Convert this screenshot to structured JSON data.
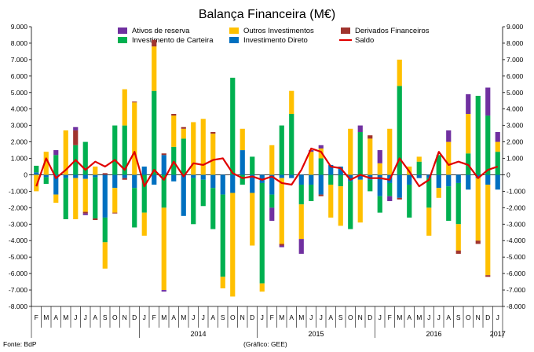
{
  "chart_data": {
    "type": "bar",
    "title": "Balança Financeira (M€)",
    "source": "Fonte: BdP",
    "credit": "(Gráfico: GEE)",
    "ylim": [
      -8000,
      9000
    ],
    "y_ticks": [
      "9.000",
      "8.000",
      "7.000",
      "6.000",
      "5.000",
      "4.000",
      "3.000",
      "2.000",
      "1.000",
      "0",
      "-1.000",
      "-2.000",
      "-3.000",
      "-4.000",
      "-5.000",
      "-6.000",
      "-7.000",
      "-8.000"
    ],
    "y_tick_values": [
      9000,
      8000,
      7000,
      6000,
      5000,
      4000,
      3000,
      2000,
      1000,
      0,
      -1000,
      -2000,
      -3000,
      -4000,
      -5000,
      -6000,
      -7000,
      -8000
    ],
    "month_labels": [
      "F",
      "M",
      "A",
      "M",
      "J",
      "J",
      "A",
      "S",
      "O",
      "N",
      "D",
      "J",
      "F",
      "M",
      "A",
      "M",
      "J",
      "J",
      "A",
      "S",
      "O",
      "N",
      "D",
      "J",
      "F",
      "M",
      "A",
      "M",
      "J",
      "J",
      "A",
      "S",
      "O",
      "N",
      "D",
      "J",
      "F",
      "M",
      "A",
      "M",
      "J",
      "J",
      "A",
      "S",
      "O",
      "N",
      "D",
      "J"
    ],
    "year_labels": [
      {
        "label": "2014",
        "start": 11,
        "end": 22
      },
      {
        "label": "2015",
        "start": 23,
        "end": 34
      },
      {
        "label": "2016",
        "start": 35,
        "end": 46
      },
      {
        "label": "2017",
        "start": 47,
        "end": 47
      }
    ],
    "year_separators_before": [
      11,
      23,
      35,
      47
    ],
    "legend": [
      {
        "name": "Ativos de reserva",
        "color": "#7030A0",
        "kind": "box"
      },
      {
        "name": "Outros Investimentos",
        "color": "#FFC000",
        "kind": "box"
      },
      {
        "name": "Derivados Financeiros",
        "color": "#A0342E",
        "kind": "box"
      },
      {
        "name": "Investimento de Carteira",
        "color": "#00B050",
        "kind": "box"
      },
      {
        "name": "Investimento Direto",
        "color": "#0070C0",
        "kind": "box"
      },
      {
        "name": "Saldo",
        "color": "#E00000",
        "kind": "line"
      }
    ],
    "series": [
      {
        "name": "Investimento Direto",
        "color": "#0070C0",
        "values": [
          150,
          -150,
          -1200,
          -200,
          -200,
          -250,
          -150,
          -2600,
          -800,
          -200,
          -800,
          500,
          -600,
          1200,
          -400,
          -2500,
          -200,
          -300,
          -800,
          -1200,
          -1100,
          1500,
          -1100,
          -500,
          -1200,
          -200,
          -200,
          -600,
          -600,
          -1200,
          600,
          500,
          -400,
          -300,
          -300,
          -1300,
          -500,
          -1400,
          -600,
          -200,
          -200,
          -800,
          -700,
          -500,
          -900,
          -200,
          -600,
          -900
        ]
      },
      {
        "name": "Investimento de Carteira",
        "color": "#00B050",
        "values": [
          400,
          -400,
          1200,
          -2500,
          1800,
          2000,
          -2500,
          -1500,
          3000,
          3000,
          -2400,
          -2300,
          5100,
          -2000,
          1700,
          2200,
          -2800,
          -1600,
          -2500,
          -5000,
          5900,
          -600,
          1100,
          -6100,
          -800,
          3000,
          3700,
          -1200,
          -1000,
          1000,
          -600,
          -700,
          -2900,
          2600,
          -700,
          -1000,
          -800,
          5400,
          -2000,
          800,
          -1800,
          1200,
          -2100,
          -2500,
          1300,
          4800,
          3600,
          1400
        ]
      },
      {
        "name": "Outros Investimentos",
        "color": "#FFC000",
        "values": [
          -1000,
          1400,
          -500,
          2700,
          -2500,
          -2000,
          500,
          -1600,
          -1500,
          2200,
          4400,
          -1400,
          2700,
          -5000,
          1900,
          600,
          3200,
          3400,
          2500,
          -700,
          -6300,
          1300,
          -3200,
          -500,
          1800,
          -4000,
          1400,
          -2100,
          1400,
          600,
          -2000,
          -2400,
          2800,
          -2600,
          2200,
          700,
          2800,
          1600,
          500,
          300,
          -1700,
          -600,
          2000,
          -1600,
          2400,
          -3800,
          -5500,
          600
        ]
      },
      {
        "name": "Derivados Financeiros",
        "color": "#A0342E",
        "values": [
          0,
          0,
          0,
          0,
          900,
          -100,
          -100,
          100,
          -50,
          -100,
          50,
          0,
          400,
          100,
          100,
          100,
          0,
          0,
          100,
          0,
          0,
          0,
          0,
          0,
          0,
          -100,
          0,
          0,
          0,
          -100,
          0,
          0,
          0,
          0,
          200,
          0,
          0,
          -100,
          0,
          0,
          0,
          0,
          0,
          -200,
          0,
          -200,
          -100,
          0
        ]
      },
      {
        "name": "Ativos de reserva",
        "color": "#7030A0",
        "values": [
          0,
          0,
          300,
          0,
          200,
          -100,
          0,
          0,
          0,
          0,
          0,
          0,
          0,
          -100,
          0,
          0,
          0,
          0,
          0,
          0,
          0,
          0,
          0,
          0,
          -800,
          -100,
          0,
          -900,
          100,
          200,
          0,
          0,
          0,
          400,
          0,
          800,
          -300,
          0,
          0,
          0,
          0,
          0,
          700,
          0,
          1200,
          0,
          1700,
          600
        ]
      }
    ],
    "saldo": {
      "name": "Saldo",
      "color": "#E00000",
      "values": [
        -700,
        1000,
        -200,
        300,
        900,
        300,
        800,
        500,
        900,
        300,
        1400,
        -700,
        300,
        -300,
        800,
        -100,
        700,
        600,
        900,
        1000,
        100,
        -200,
        -100,
        -300,
        -100,
        -500,
        -600,
        300,
        1600,
        1400,
        500,
        400,
        -300,
        0,
        -200,
        -200,
        -300,
        1000,
        200,
        -700,
        -300,
        1400,
        600,
        800,
        600,
        -200,
        300,
        500
      ]
    }
  }
}
